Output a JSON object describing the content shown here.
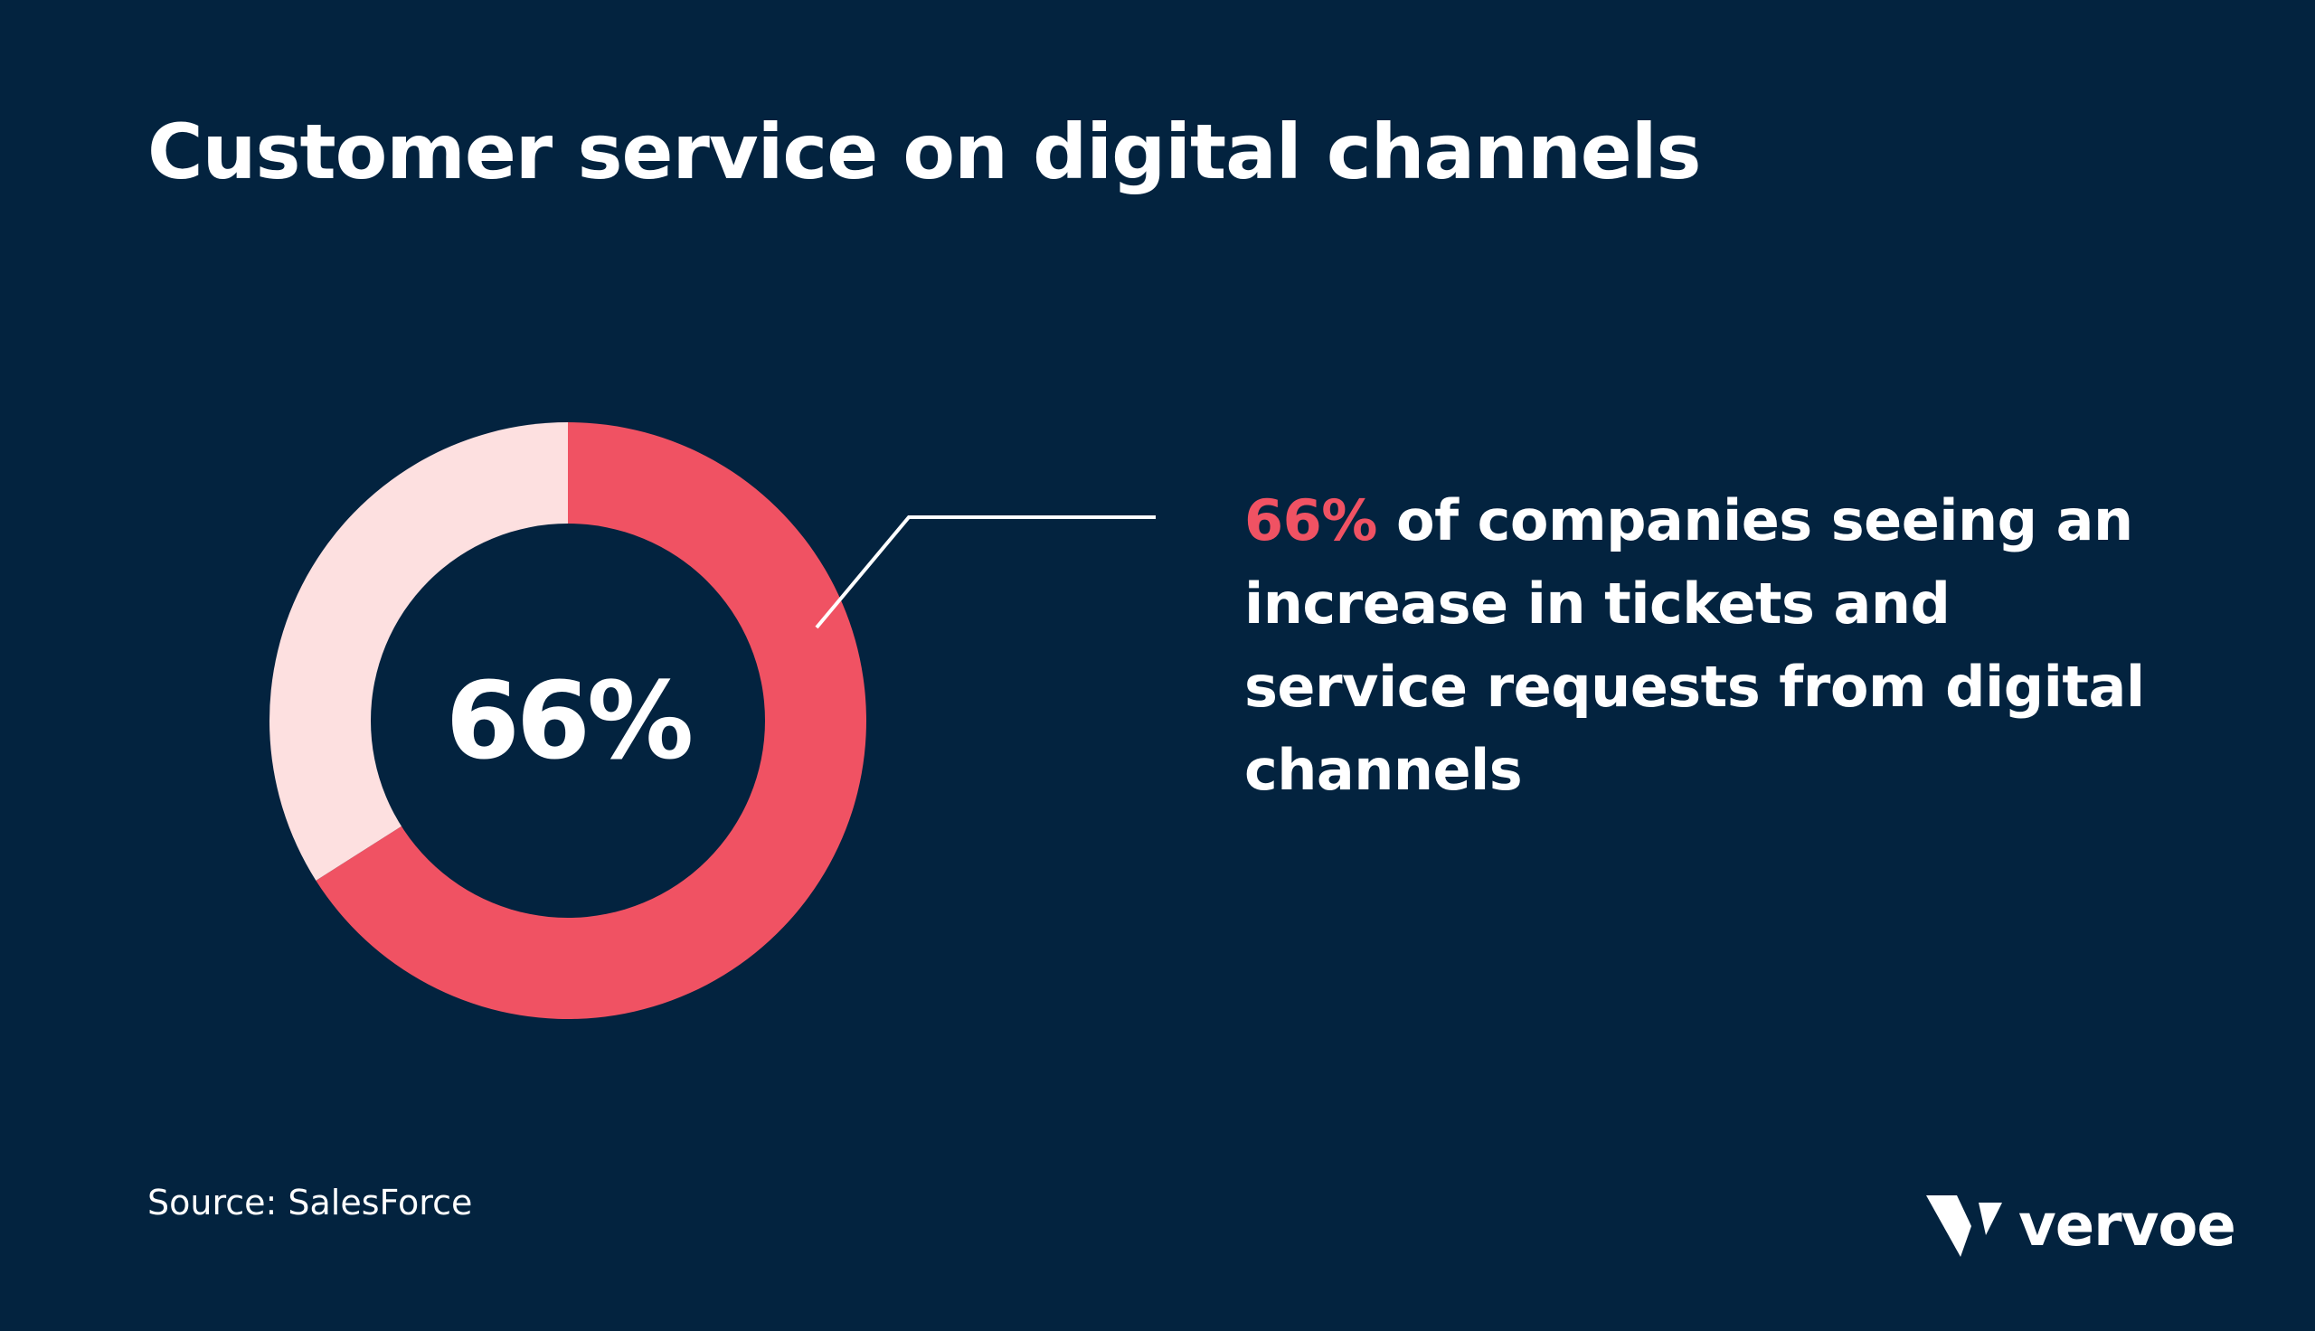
{
  "title": "Customer service on digital channels",
  "chart_data": {
    "type": "pie",
    "style": "donut",
    "slices": [
      {
        "value": 66,
        "color": "#f05263"
      },
      {
        "value": 34,
        "color": "#fde0e0"
      }
    ],
    "center_label": "66%"
  },
  "callout": {
    "highlight": "66%",
    "text": " of companies seeing an increase in tickets and service requests from digital channels"
  },
  "source": "Source: SalesForce",
  "brand": {
    "name": "vervoe",
    "icon": "vervoe-v-logo-icon"
  },
  "colors": {
    "background": "#03233f",
    "accent": "#f05263",
    "accent_light": "#fde0e0",
    "text": "#ffffff"
  }
}
